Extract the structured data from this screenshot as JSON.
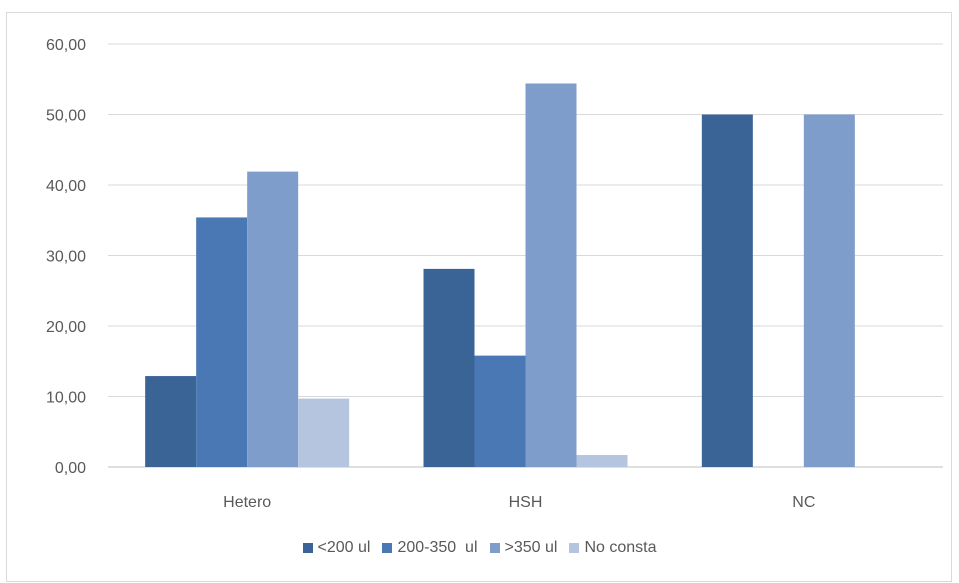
{
  "chart_data": {
    "type": "bar",
    "title": "",
    "xlabel": "",
    "ylabel": "",
    "categories": [
      "Hetero",
      "HSH",
      "NC"
    ],
    "series": [
      {
        "name": "<200 ul",
        "values": [
          12.9,
          28.1,
          50.0
        ],
        "color": "#3b6496"
      },
      {
        "name": "200-350  ul",
        "values": [
          35.4,
          15.8,
          0
        ],
        "color": "#4a78b4"
      },
      {
        "name": ">350 ul",
        "values": [
          41.9,
          54.4,
          50.0
        ],
        "color": "#7f9dcb"
      },
      {
        "name": "No consta",
        "values": [
          9.7,
          1.7,
          0
        ],
        "color": "#b6c5df"
      }
    ],
    "ylim": [
      0,
      60
    ],
    "yticks": [
      "0,00",
      "10,00",
      "20,00",
      "30,00",
      "40,00",
      "50,00",
      "60,00"
    ],
    "grid": true,
    "legend_position": "bottom"
  }
}
